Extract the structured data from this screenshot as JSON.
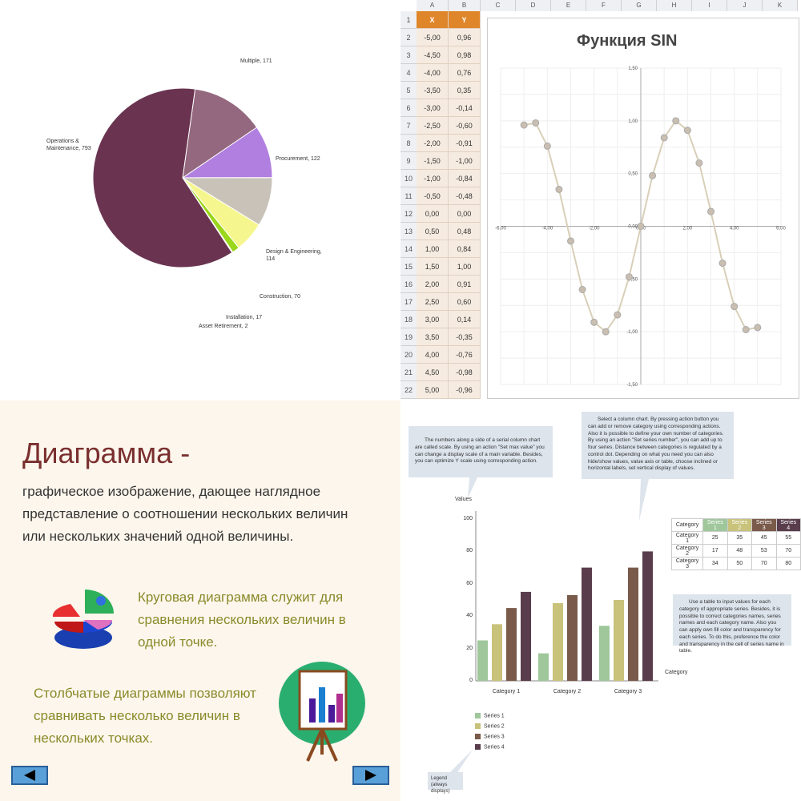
{
  "chart_data": [
    {
      "type": "pie",
      "title": "",
      "slices": [
        {
          "label": "Operations & Maintenance, 793",
          "value": 793,
          "color": "#6a3451"
        },
        {
          "label": "Multiple, 171",
          "value": 171,
          "color": "#94687e"
        },
        {
          "label": "Procurement, 122",
          "value": 122,
          "color": "#b07fe0"
        },
        {
          "label": "Design & Engineering, 114",
          "value": 114,
          "color": "#c8c2b8"
        },
        {
          "label": "Construction, 70",
          "value": 70,
          "color": "#f5f78e"
        },
        {
          "label": "Installation, 17",
          "value": 17,
          "color": "#9ad61a"
        },
        {
          "label": "Asset Retirement, 2",
          "value": 2,
          "color": "#e0e0e0"
        }
      ]
    },
    {
      "type": "line",
      "title": "Функция SIN",
      "series": [
        {
          "name": "Y",
          "x": [
            -5.0,
            -4.5,
            -4.0,
            -3.5,
            -3.0,
            -2.5,
            -2.0,
            -1.5,
            -1.0,
            -0.5,
            0.0,
            0.5,
            1.0,
            1.5,
            2.0,
            2.5,
            3.0,
            3.5,
            4.0,
            4.5,
            5.0
          ],
          "values": [
            0.96,
            0.98,
            0.76,
            0.35,
            -0.14,
            -0.6,
            -0.91,
            -1.0,
            -0.84,
            -0.48,
            0.0,
            0.48,
            0.84,
            1.0,
            0.91,
            0.6,
            0.14,
            -0.35,
            -0.76,
            -0.98,
            -0.96
          ]
        }
      ],
      "x_ticks": [
        "-6,00",
        "-4,00",
        "-2,00",
        "0,00",
        "2,00",
        "4,00",
        "6,00"
      ],
      "y_ticks": [
        "1,50",
        "1,00",
        "0,50",
        "0,00",
        "-0,50",
        "-1,00",
        "-1,50"
      ],
      "xlim": [
        -6,
        6
      ],
      "ylim": [
        -1.5,
        1.5
      ]
    },
    {
      "type": "bar",
      "title": "",
      "categories": [
        "Category 1",
        "Category 2",
        "Category 3"
      ],
      "series": [
        {
          "name": "Series 1",
          "values": [
            25,
            17,
            34
          ],
          "color": "#9fc79b"
        },
        {
          "name": "Series 2",
          "values": [
            35,
            48,
            50
          ],
          "color": "#c8c27a"
        },
        {
          "name": "Series 3",
          "values": [
            45,
            53,
            70
          ],
          "color": "#7a5a4a"
        },
        {
          "name": "Series 4",
          "values": [
            55,
            70,
            80
          ],
          "color": "#5a3d4c"
        }
      ],
      "xlabel": "Category",
      "ylabel": "Values",
      "ylim": [
        0,
        100
      ],
      "y_ticks": [
        "0",
        "20",
        "40",
        "60",
        "80",
        "100"
      ]
    }
  ],
  "spreadsheet": {
    "col_headers": [
      "A",
      "B",
      "C",
      "D",
      "E",
      "F",
      "G",
      "H",
      "I",
      "J",
      "K"
    ],
    "header_x": "X",
    "header_y": "Y",
    "row_numbers": [
      "1",
      "2",
      "3",
      "4",
      "5",
      "6",
      "7",
      "8",
      "9",
      "10",
      "11",
      "12",
      "13",
      "14",
      "15",
      "16",
      "17",
      "18",
      "19",
      "20",
      "21",
      "22"
    ],
    "x_values": [
      "-5,00",
      "-4,50",
      "-4,00",
      "-3,50",
      "-3,00",
      "-2,50",
      "-2,00",
      "-1,50",
      "-1,00",
      "-0,50",
      "0,00",
      "0,50",
      "1,00",
      "1,50",
      "2,00",
      "2,50",
      "3,00",
      "3,50",
      "4,00",
      "4,50",
      "5,00"
    ],
    "y_values": [
      "0,96",
      "0,98",
      "0,76",
      "0,35",
      "-0,14",
      "-0,60",
      "-0,91",
      "-1,00",
      "-0,84",
      "-0,48",
      "0,00",
      "0,48",
      "0,84",
      "1,00",
      "0,91",
      "0,60",
      "0,14",
      "-0,35",
      "-0,76",
      "-0,98",
      "-0,96"
    ]
  },
  "slide": {
    "title": "Диаграмма -",
    "definition": "графическое изображение, дающее наглядное представление о соотношении нескольких величин или нескольких значений одной величины.",
    "pie_text": "Круговая диаграмма служит для сравнения нескольких величин в одной точке.",
    "bar_text": "Столбчатые диаграммы позволяют сравнивать несколько величин в нескольких точках."
  },
  "bar_panel": {
    "callout_scale": "The numbers along a side of a serial column chart are called scale. By using an action \"Set max value\" you can change a display scale of a main variable. Besides, you can optimize Y scale using corresponding action.",
    "callout_select": "Select a column chart. By pressing action button you can add or remove category using corresponding actions. Also it is possible to define your own number of categories. By using an action \"Set series number\", you can add up to four series. Distance between categories is regulated by a control dot. Depending on what you need you can also hide/show values, value axis or table, choose inclined or horizontal labels, set vertical display of values.",
    "callout_table": "Use a table to input values for each category of appropriate series. Besides, it is possible to correct categories names, series names and each category name. Also you can apply own fill color and transparency for each series. To do this, preference the color and transparency in the cell of series name in table.",
    "callout_legend": "Legend (always displays)",
    "table_header": "Category"
  }
}
